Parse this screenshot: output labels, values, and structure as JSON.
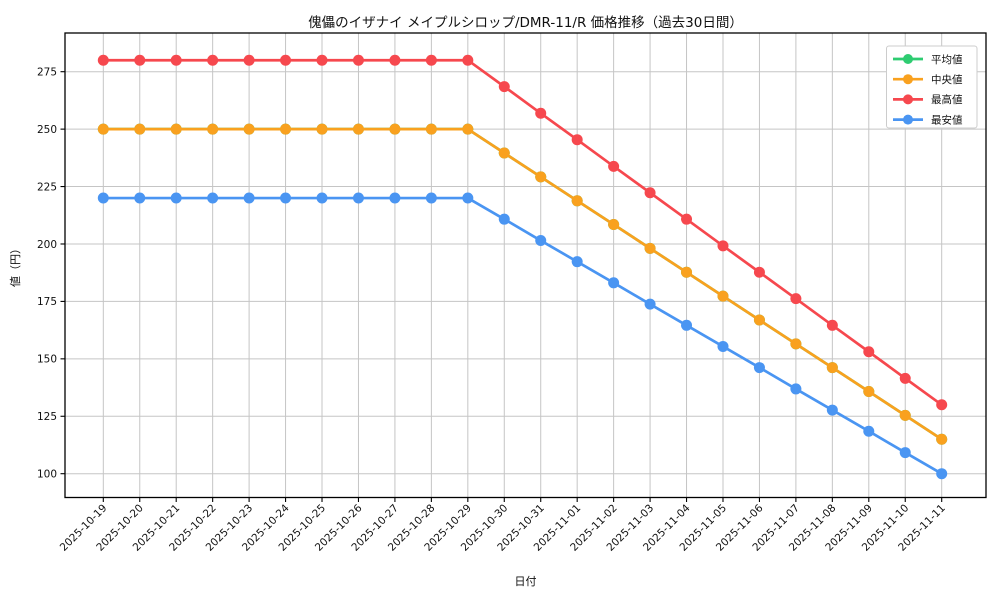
{
  "chart_data": {
    "type": "line",
    "title": "傀儡のイザナイ メイプルシロップ/DMR-11/R 価格推移（過去30日間）",
    "xlabel": "日付",
    "ylabel": "値（円）",
    "categories": [
      "2025-10-19",
      "2025-10-20",
      "2025-10-21",
      "2025-10-22",
      "2025-10-23",
      "2025-10-24",
      "2025-10-25",
      "2025-10-26",
      "2025-10-27",
      "2025-10-28",
      "2025-10-29",
      "2025-10-30",
      "2025-10-31",
      "2025-11-01",
      "2025-11-02",
      "2025-11-03",
      "2025-11-04",
      "2025-11-05",
      "2025-11-06",
      "2025-11-07",
      "2025-11-08",
      "2025-11-09",
      "2025-11-10",
      "2025-11-11"
    ],
    "yticks": [
      100,
      125,
      150,
      175,
      200,
      225,
      250,
      275
    ],
    "ylim": [
      90,
      292
    ],
    "grid": true,
    "legend_position": "upper right",
    "series": [
      {
        "key": "average",
        "name": "平均値",
        "color": "#2ecc71",
        "values": [
          250,
          250,
          250,
          250,
          250,
          250,
          250,
          250,
          250,
          250,
          250,
          239.6,
          229.2,
          218.8,
          208.5,
          198.1,
          187.7,
          177.3,
          166.9,
          156.5,
          146.2,
          135.8,
          125.4,
          115
        ]
      },
      {
        "key": "median",
        "name": "中央値",
        "color": "#f9a11f",
        "values": [
          250,
          250,
          250,
          250,
          250,
          250,
          250,
          250,
          250,
          250,
          250,
          239.6,
          229.2,
          218.8,
          208.5,
          198.1,
          187.7,
          177.3,
          166.9,
          156.5,
          146.2,
          135.8,
          125.4,
          115
        ]
      },
      {
        "key": "max",
        "name": "最高値",
        "color": "#f6484e",
        "values": [
          280,
          280,
          280,
          280,
          280,
          280,
          280,
          280,
          280,
          280,
          280,
          268.5,
          256.9,
          245.4,
          233.8,
          222.3,
          210.8,
          199.2,
          187.7,
          176.2,
          164.6,
          153.1,
          141.5,
          130
        ]
      },
      {
        "key": "min",
        "name": "最安値",
        "color": "#4a95f2",
        "values": [
          220,
          220,
          220,
          220,
          220,
          220,
          220,
          220,
          220,
          220,
          220,
          210.8,
          201.5,
          192.3,
          183.1,
          173.8,
          164.6,
          155.4,
          146.2,
          136.9,
          127.7,
          118.5,
          109.2,
          100
        ]
      }
    ],
    "style": {
      "grid_color": "#c5c5c5",
      "spine_color": "#000000",
      "text_color": "#111111",
      "legend_border_color": "#cccccc",
      "background": "#ffffff"
    }
  }
}
